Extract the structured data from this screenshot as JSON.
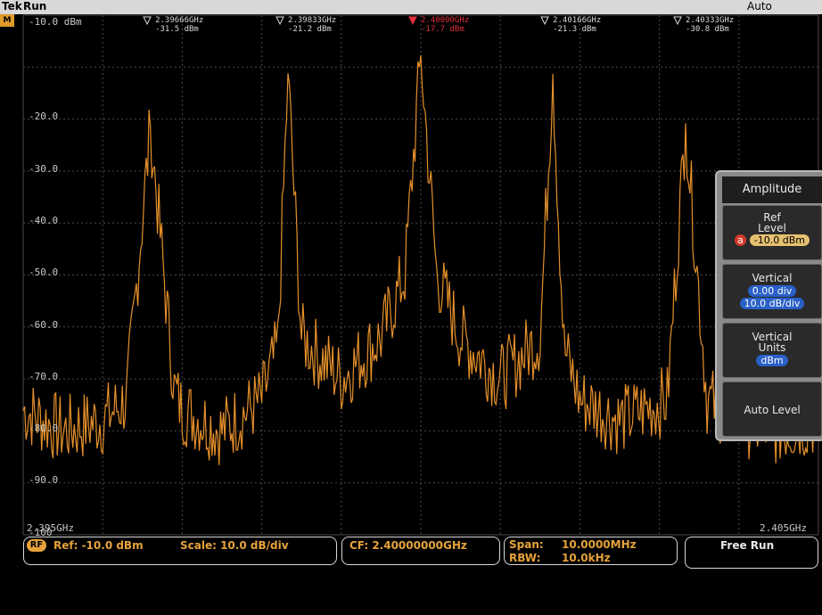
{
  "header": {
    "logo": "Tek",
    "state": "Run",
    "trigger_mode": "Auto",
    "channel_badge": "M"
  },
  "y_axis": {
    "labels": [
      "-10.0 dBm",
      "-20.0",
      "-30.0",
      "-40.0",
      "-50.0",
      "-60.0",
      "-70.0",
      "-80.0",
      "-90.0",
      "-100"
    ]
  },
  "freq_start": "2.395GHz",
  "freq_stop": "2.405GHz",
  "markers": [
    {
      "freq": "2.39666GHz",
      "level": "-31.5 dBm",
      "ref": false
    },
    {
      "freq": "2.39833GHz",
      "level": "-21.2 dBm",
      "ref": false
    },
    {
      "freq": "2.40000GHz",
      "level": "-17.7 dBm",
      "ref": true
    },
    {
      "freq": "2.40166GHz",
      "level": "-21.3 dBm",
      "ref": false
    },
    {
      "freq": "2.40333GHz",
      "level": "-30.8 dBm",
      "ref": false
    }
  ],
  "status": {
    "rf_badge": "RF",
    "ref": "Ref: -10.0 dBm",
    "scale": "Scale: 10.0 dB/div",
    "cf": "CF: 2.40000000GHz",
    "span_label": "Span:",
    "span_value": "10.0000MHz",
    "rbw_label": "RBW:",
    "rbw_value": "10.0kHz",
    "run_mode": "Free Run"
  },
  "menu": {
    "title": "Amplitude",
    "ref_level": {
      "label1": "Ref",
      "label2": "Level",
      "badge": "a",
      "value": "-10.0 dBm"
    },
    "vertical": {
      "label": "Vertical",
      "position": "0.00 div",
      "scale": "10.0 dB/div"
    },
    "vertical_units": {
      "label1": "Vertical",
      "label2": "Units",
      "value": "dBm"
    },
    "auto_level": "Auto Level"
  },
  "colors": {
    "trace": "#e5902a",
    "marker_ref": "#e0303a",
    "accent": "#e5a23a",
    "pill_blue": "#2a60c8"
  },
  "chart_data": {
    "type": "line",
    "xlabel": "",
    "ylabel": "",
    "x_range_ghz": [
      2.395,
      2.405
    ],
    "ylim": [
      -110,
      -10
    ],
    "grid": true,
    "series": [
      {
        "values_ghz_dbm": [
          [
            2.395,
            -86
          ],
          [
            2.3955,
            -90
          ],
          [
            2.396,
            -88
          ],
          [
            2.3963,
            -84
          ],
          [
            2.3966,
            -31.5
          ],
          [
            2.3969,
            -82
          ],
          [
            2.397,
            -86
          ],
          [
            2.3975,
            -90
          ],
          [
            2.398,
            -84
          ],
          [
            2.3982,
            -74
          ],
          [
            2.39833,
            -21.2
          ],
          [
            2.3985,
            -72
          ],
          [
            2.399,
            -80
          ],
          [
            2.3995,
            -72
          ],
          [
            2.3998,
            -60
          ],
          [
            2.4,
            -17.7
          ],
          [
            2.4002,
            -60
          ],
          [
            2.4005,
            -72
          ],
          [
            2.401,
            -80
          ],
          [
            2.4015,
            -72
          ],
          [
            2.40166,
            -21.3
          ],
          [
            2.4018,
            -74
          ],
          [
            2.402,
            -84
          ],
          [
            2.4025,
            -88
          ],
          [
            2.4031,
            -84
          ],
          [
            2.40333,
            -30.8
          ],
          [
            2.4036,
            -84
          ],
          [
            2.404,
            -88
          ],
          [
            2.4045,
            -90
          ],
          [
            2.405,
            -88
          ]
        ]
      }
    ]
  }
}
